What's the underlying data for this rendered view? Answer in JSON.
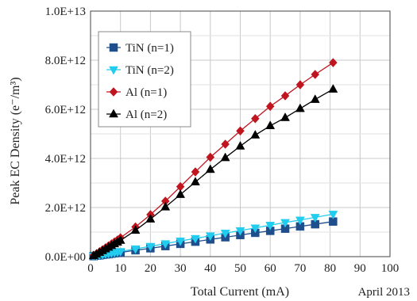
{
  "chart_data": {
    "type": "line",
    "xlabel": "Total Current (mA)",
    "ylabel": "Peak EC Density (e⁻/m³)",
    "xlim": [
      0,
      100
    ],
    "ylim": [
      0,
      10000000000000.0
    ],
    "x_ticks": [
      0,
      10,
      20,
      30,
      40,
      50,
      60,
      70,
      80,
      90,
      100
    ],
    "y_ticks": [
      0,
      2000000000000.0,
      4000000000000.0,
      6000000000000.0,
      8000000000000.0,
      10000000000000.0
    ],
    "x_tick_labels": [
      "0",
      "10",
      "20",
      "30",
      "40",
      "50",
      "60",
      "70",
      "80",
      "90",
      "100"
    ],
    "y_tick_labels": [
      "0.0E+00",
      "2.0E+12",
      "4.0E+12",
      "6.0E+12",
      "8.0E+12",
      "1.0E+13"
    ],
    "grid": true,
    "legend_position": "top-left",
    "annotation": "April 2013",
    "series": [
      {
        "name": "TiN (n=1)",
        "color": "#1f4e8c",
        "marker": "square",
        "x": [
          1,
          2,
          3,
          4,
          5,
          6,
          7,
          8,
          9,
          10,
          15,
          20,
          25,
          30,
          35,
          40,
          45,
          50,
          55,
          60,
          65,
          70,
          75,
          81
        ],
        "y": [
          20000000000.0,
          40000000000.0,
          50000000000.0,
          70000000000.0,
          90000000000.0,
          100000000000.0,
          120000000000.0,
          140000000000.0,
          150000000000.0,
          170000000000.0,
          260000000000.0,
          340000000000.0,
          430000000000.0,
          520000000000.0,
          610000000000.0,
          700000000000.0,
          790000000000.0,
          880000000000.0,
          970000000000.0,
          1050000000000.0,
          1140000000000.0,
          1230000000000.0,
          1320000000000.0,
          1430000000000.0
        ]
      },
      {
        "name": "TiN (n=2)",
        "color": "#22ccee",
        "marker": "triangle-down",
        "x": [
          1,
          2,
          3,
          4,
          5,
          6,
          7,
          8,
          9,
          10,
          15,
          20,
          25,
          30,
          35,
          40,
          45,
          50,
          55,
          60,
          65,
          70,
          75,
          81
        ],
        "y": [
          20000000000.0,
          50000000000.0,
          70000000000.0,
          90000000000.0,
          110000000000.0,
          130000000000.0,
          150000000000.0,
          170000000000.0,
          190000000000.0,
          210000000000.0,
          320000000000.0,
          420000000000.0,
          530000000000.0,
          640000000000.0,
          740000000000.0,
          850000000000.0,
          960000000000.0,
          1060000000000.0,
          1170000000000.0,
          1280000000000.0,
          1390000000000.0,
          1490000000000.0,
          1600000000000.0,
          1730000000000.0
        ]
      },
      {
        "name": "Al (n=1)",
        "color": "#c0141e",
        "marker": "diamond",
        "x": [
          1,
          2,
          3,
          4,
          5,
          6,
          7,
          8,
          9,
          10,
          15,
          20,
          25,
          30,
          35,
          40,
          45,
          50,
          55,
          60,
          65,
          70,
          75,
          81
        ],
        "y": [
          50000000000.0,
          120000000000.0,
          200000000000.0,
          280000000000.0,
          360000000000.0,
          440000000000.0,
          520000000000.0,
          600000000000.0,
          680000000000.0,
          770000000000.0,
          1210000000000.0,
          1710000000000.0,
          2260000000000.0,
          2850000000000.0,
          3450000000000.0,
          4050000000000.0,
          4580000000000.0,
          5120000000000.0,
          5620000000000.0,
          6120000000000.0,
          6550000000000.0,
          7000000000000.0,
          7420000000000.0,
          7900000000000.0
        ]
      },
      {
        "name": "Al (n=2)",
        "color": "#000000",
        "marker": "triangle-up",
        "x": [
          1,
          2,
          3,
          4,
          5,
          6,
          7,
          8,
          9,
          10,
          15,
          20,
          25,
          30,
          35,
          40,
          45,
          50,
          55,
          60,
          65,
          70,
          75,
          81
        ],
        "y": [
          40000000000.0,
          100000000000.0,
          170000000000.0,
          240000000000.0,
          310000000000.0,
          380000000000.0,
          450000000000.0,
          520000000000.0,
          590000000000.0,
          660000000000.0,
          1070000000000.0,
          1530000000000.0,
          2020000000000.0,
          2530000000000.0,
          3040000000000.0,
          3550000000000.0,
          4030000000000.0,
          4500000000000.0,
          4950000000000.0,
          5330000000000.0,
          5660000000000.0,
          6030000000000.0,
          6400000000000.0,
          6820000000000.0
        ]
      }
    ]
  }
}
